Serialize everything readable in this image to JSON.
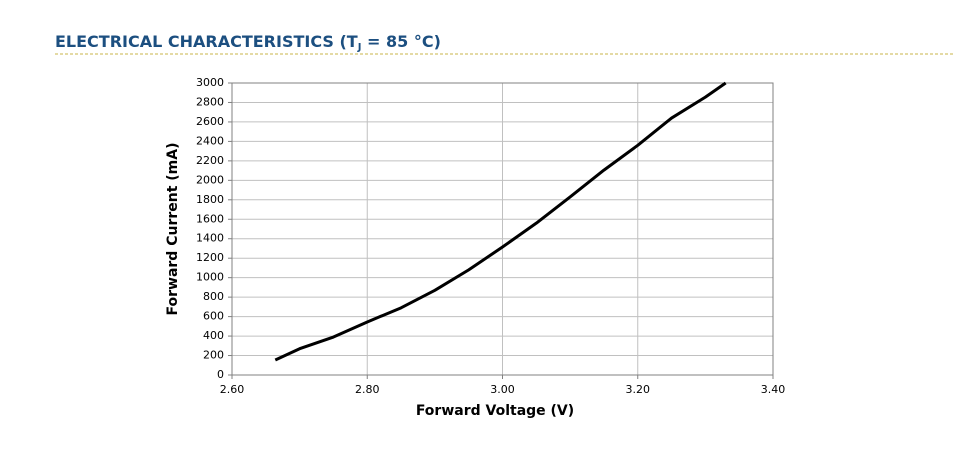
{
  "chart_data": {
    "type": "line",
    "title": [
      "ELECTRICAL CHARACTERISTICS (T",
      "J",
      " = 85 °C)"
    ],
    "x_label": "Forward Voltage (V)",
    "y_label": "Forward Current (mA)",
    "x": [
      2.664,
      2.7,
      2.75,
      2.8,
      2.85,
      2.9,
      2.95,
      3.0,
      3.05,
      3.1,
      3.15,
      3.2,
      3.25,
      3.3,
      3.33
    ],
    "series": [
      {
        "color": "#000000",
        "values": [
          154,
          270,
          390,
          545,
          690,
          870,
          1080,
          1315,
          1560,
          1830,
          2105,
          2360,
          2640,
          2855,
          3000
        ]
      }
    ],
    "xlim": [
      2.6,
      3.4
    ],
    "xticks": [
      {
        "value": 2.6,
        "label": "2.60"
      },
      {
        "value": 2.8,
        "label": "2.80"
      },
      {
        "value": 3.0,
        "label": "3.00"
      },
      {
        "value": 3.2,
        "label": "3.20"
      },
      {
        "value": 3.4,
        "label": "3.40"
      }
    ],
    "ylim": [
      0,
      3000
    ],
    "yticks": [
      0,
      200,
      400,
      600,
      800,
      1000,
      1200,
      1400,
      1600,
      1800,
      2000,
      2200,
      2400,
      2600,
      2800,
      3000
    ],
    "grid": true
  }
}
